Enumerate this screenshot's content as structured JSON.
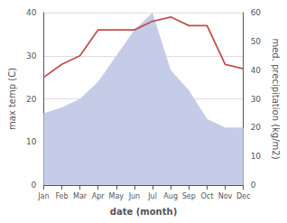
{
  "chart_data": {
    "type": "line",
    "xlabel": "date (month)",
    "ylabel": "max temp (C)",
    "y2label": "med. precipitation (kg/m2)",
    "categories": [
      "Jan",
      "Feb",
      "Mar",
      "Apr",
      "May",
      "Jun",
      "Jul",
      "Aug",
      "Sep",
      "Oct",
      "Nov",
      "Dec"
    ],
    "series": [
      {
        "type": "area",
        "color": "#c5cce8",
        "axis": "y2",
        "values": [
          25,
          27,
          30,
          36,
          45,
          54,
          60,
          40,
          33,
          23,
          20,
          20
        ]
      },
      {
        "type": "line",
        "color": "#c0504d",
        "axis": "y",
        "values": [
          25,
          28,
          30,
          36,
          36,
          36,
          38,
          39,
          37,
          37,
          28,
          27
        ]
      }
    ],
    "ylim": [
      0,
      40
    ],
    "yticks": [
      0,
      10,
      20,
      30,
      40
    ],
    "y2lim": [
      0,
      60
    ],
    "y2ticks": [
      0,
      10,
      20,
      30,
      40,
      50,
      60
    ],
    "grid": true
  }
}
